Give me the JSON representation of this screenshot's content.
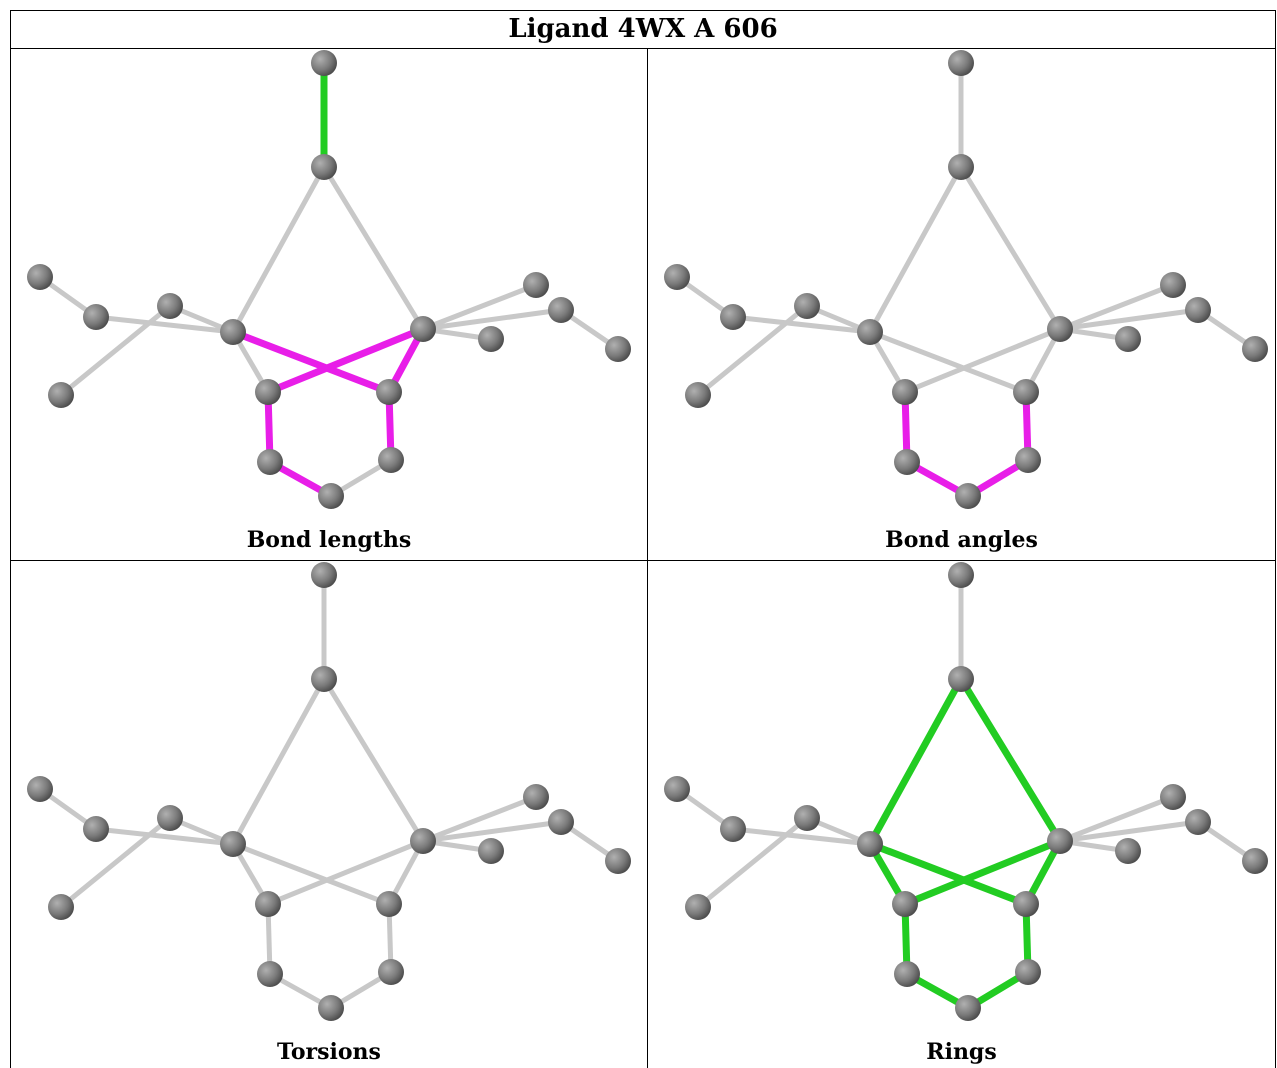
{
  "title": "Ligand 4WX A 606",
  "colors": {
    "atom": "#7a7a7a",
    "bond_default": "#c8c8c8",
    "outlier_magenta": "#e81ee8",
    "outlier_green": "#22cc22"
  },
  "panels": [
    {
      "id": "bond-lengths",
      "caption": "Bond lengths",
      "highlight": {
        "magenta": [
          [
            4,
            10
          ],
          [
            4,
            8
          ],
          [
            5,
            7
          ],
          [
            5,
            9
          ],
          [
            6,
            8
          ],
          [
            6,
            9
          ],
          [
            8,
            10
          ],
          [
            9,
            11
          ],
          [
            10,
            12
          ]
        ],
        "green": [
          [
            0,
            1
          ],
          [
            2,
            7
          ],
          [
            3,
            7
          ],
          [
            7,
            6
          ],
          [
            13,
            15
          ],
          [
            5,
            9
          ],
          [
            6,
            7
          ]
        ]
      }
    },
    {
      "id": "bond-angles",
      "caption": "Bond angles",
      "highlight": {
        "magenta": [
          [
            8,
            10
          ],
          [
            9,
            11
          ],
          [
            10,
            12
          ],
          [
            11,
            12
          ]
        ],
        "green": []
      }
    },
    {
      "id": "torsions",
      "caption": "Torsions",
      "highlight": {
        "magenta": [],
        "green": []
      }
    },
    {
      "id": "rings",
      "caption": "Rings",
      "highlight": {
        "magenta": [],
        "green": [
          [
            1,
            6
          ],
          [
            1,
            5
          ],
          [
            6,
            9
          ],
          [
            5,
            8
          ],
          [
            6,
            8
          ],
          [
            8,
            10
          ],
          [
            10,
            12
          ],
          [
            12,
            11
          ],
          [
            11,
            9
          ],
          [
            9,
            5
          ]
        ]
      }
    }
  ]
}
